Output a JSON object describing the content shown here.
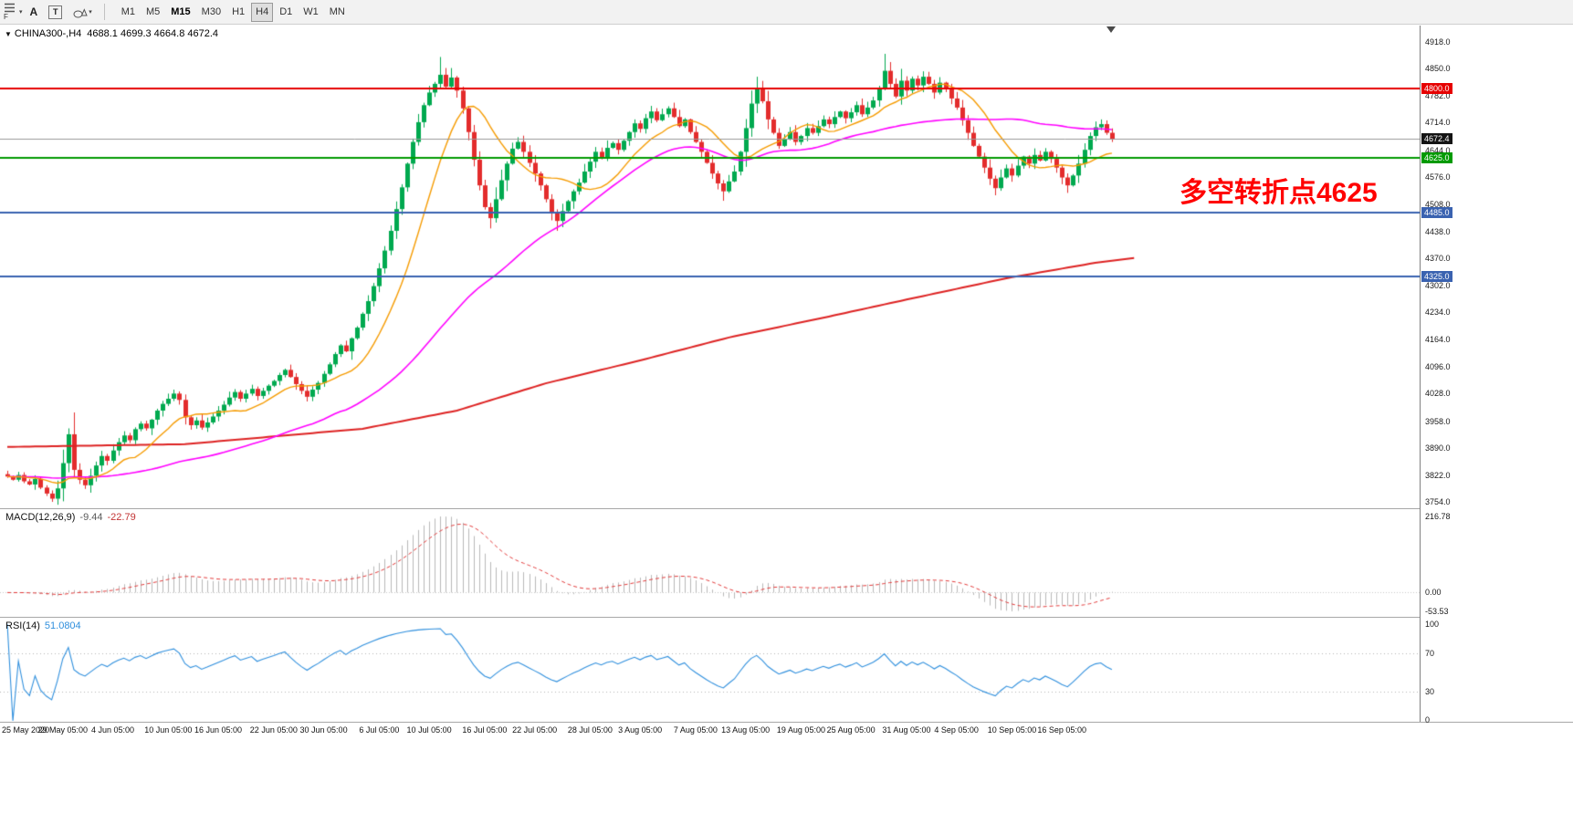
{
  "toolbar": {
    "profile_letter": "F",
    "cursor_label": "A",
    "text_tool_label": "T",
    "timeframes": [
      {
        "label": "M1"
      },
      {
        "label": "M5"
      },
      {
        "label": "M15",
        "bold": true
      },
      {
        "label": "M30"
      },
      {
        "label": "H1"
      },
      {
        "label": "H4",
        "pressed": true
      },
      {
        "label": "D1"
      },
      {
        "label": "W1"
      },
      {
        "label": "MN"
      }
    ]
  },
  "chart": {
    "symbol_title": "CHINA300-,H4",
    "ohlc_text": "4688.1 4699.3 4664.8 4672.4"
  },
  "macd_panel": {
    "title": "MACD(12,26,9)",
    "main_value": "-9.44",
    "signal_value": "-22.79",
    "axis_top": "216.78",
    "axis_zero": "0.00",
    "axis_bottom": "-53.53"
  },
  "rsi_panel": {
    "title": "RSI(14)",
    "value": "51.0804",
    "axis": [
      "100",
      "70",
      "30",
      "0"
    ]
  },
  "chart_data": {
    "type": "candlestick",
    "symbol": "CHINA300-",
    "timeframe": "H4",
    "last_ohlc": {
      "open": 4688.1,
      "high": 4699.3,
      "low": 4664.8,
      "close": 4672.4
    },
    "annotation": {
      "text": "多空转折点4625",
      "color": "#ff0000"
    },
    "first_open": 3824,
    "closes": [
      3818,
      3810,
      3822,
      3806,
      3798,
      3812,
      3790,
      3775,
      3762,
      3788,
      3852,
      3925,
      3835,
      3810,
      3796,
      3820,
      3846,
      3870,
      3858,
      3884,
      3905,
      3922,
      3910,
      3938,
      3952,
      3940,
      3962,
      3985,
      4002,
      4015,
      4028,
      4012,
      3968,
      3948,
      3960,
      3942,
      3955,
      3970,
      3985,
      4000,
      4018,
      4032,
      4015,
      4028,
      4040,
      4022,
      4035,
      4048,
      4060,
      4075,
      4088,
      4070,
      4052,
      4035,
      4020,
      4038,
      4055,
      4078,
      4102,
      4128,
      4150,
      4135,
      4168,
      4195,
      4230,
      4262,
      4300,
      4345,
      4390,
      4440,
      4495,
      4550,
      4610,
      4665,
      4715,
      4758,
      4790,
      4812,
      4835,
      4805,
      4828,
      4795,
      4750,
      4690,
      4620,
      4555,
      4500,
      4472,
      4520,
      4568,
      4610,
      4648,
      4665,
      4640,
      4612,
      4585,
      4555,
      4520,
      4488,
      4465,
      4490,
      4515,
      4540,
      4562,
      4590,
      4615,
      4640,
      4625,
      4650,
      4662,
      4645,
      4668,
      4690,
      4712,
      4698,
      4725,
      4742,
      4720,
      4735,
      4750,
      4728,
      4705,
      4722,
      4690,
      4665,
      4640,
      4612,
      4585,
      4560,
      4540,
      4565,
      4590,
      4640,
      4700,
      4762,
      4800,
      4768,
      4722,
      4688,
      4655,
      4672,
      4690,
      4665,
      4680,
      4700,
      4688,
      4705,
      4722,
      4710,
      4728,
      4742,
      4725,
      4740,
      4758,
      4735,
      4752,
      4770,
      4800,
      4845,
      4812,
      4780,
      4820,
      4795,
      4825,
      4808,
      4830,
      4812,
      4790,
      4815,
      4798,
      4775,
      4752,
      4720,
      4688,
      4655,
      4628,
      4600,
      4572,
      4548,
      4575,
      4598,
      4580,
      4605,
      4628,
      4610,
      4632,
      4618,
      4640,
      4622,
      4600,
      4575,
      4555,
      4580,
      4610,
      4645,
      4680,
      4702,
      4710,
      4688.1,
      4672.4
    ],
    "high_overrides": {
      "11": 3940,
      "78": 4880,
      "80": 4852,
      "135": 4830,
      "158": 4888,
      "161": 4850,
      "197": 4722,
      "199": 4699.3
    },
    "low_overrides": {
      "8": 3754,
      "87": 4446,
      "99": 4440,
      "129": 4516,
      "178": 4530,
      "191": 4536,
      "199": 4664.8
    },
    "candle_colors": {
      "bull": "#00a94f",
      "bear": "#e32c2c"
    },
    "y_axis": {
      "range": [
        3754.0,
        4918.0
      ],
      "ticks": [
        "4918.0",
        "4850.0",
        "4782.0",
        "4714.0",
        "4644.0",
        "4576.0",
        "4508.0",
        "4438.0",
        "4370.0",
        "4302.0",
        "4234.0",
        "4164.0",
        "4096.0",
        "4028.0",
        "3958.0",
        "3890.0",
        "3822.0",
        "3754.0"
      ]
    },
    "x_axis": {
      "labels": [
        {
          "text": "25 May 2020",
          "candle": 0
        },
        {
          "text": "29 May 05:00",
          "candle": 10
        },
        {
          "text": "4 Jun 05:00",
          "candle": 19
        },
        {
          "text": "10 Jun 05:00",
          "candle": 29
        },
        {
          "text": "16 Jun 05:00",
          "candle": 38
        },
        {
          "text": "22 Jun 05:00",
          "candle": 48
        },
        {
          "text": "30 Jun 05:00",
          "candle": 57
        },
        {
          "text": "6 Jul 05:00",
          "candle": 67
        },
        {
          "text": "10 Jul 05:00",
          "candle": 76
        },
        {
          "text": "16 Jul 05:00",
          "candle": 86
        },
        {
          "text": "22 Jul 05:00",
          "candle": 95
        },
        {
          "text": "28 Jul 05:00",
          "candle": 105
        },
        {
          "text": "3 Aug 05:00",
          "candle": 114
        },
        {
          "text": "7 Aug 05:00",
          "candle": 124
        },
        {
          "text": "13 Aug 05:00",
          "candle": 133
        },
        {
          "text": "19 Aug 05:00",
          "candle": 143
        },
        {
          "text": "25 Aug 05:00",
          "candle": 152
        },
        {
          "text": "31 Aug 05:00",
          "candle": 162
        },
        {
          "text": "4 Sep 05:00",
          "candle": 171
        },
        {
          "text": "10 Sep 05:00",
          "candle": 181
        },
        {
          "text": "16 Sep 05:00",
          "candle": 190
        }
      ]
    },
    "horizontal_levels": [
      {
        "price": 4800.0,
        "label": "4800.0",
        "line_color": "#e60000",
        "badge_bg": "#e60000",
        "width": 2
      },
      {
        "price": 4625.0,
        "label": "4625.0",
        "line_color": "#009a00",
        "badge_bg": "#009a00",
        "width": 2
      },
      {
        "price": 4485.0,
        "label": "4485.0",
        "line_color": "#3a62b0",
        "badge_bg": "#3a62b0",
        "width": 2
      },
      {
        "price": 4325.0,
        "label": "4325.0",
        "line_color": "#3a62b0",
        "badge_bg": "#3a62b0",
        "width": 2
      },
      {
        "price": 4672.4,
        "label": "4672.4",
        "line_color": "#999999",
        "badge_bg": "#141414",
        "width": 1,
        "role": "current_price"
      }
    ],
    "moving_averages": {
      "fast": {
        "color": "#f59b00",
        "period": 12
      },
      "medium": {
        "color": "#ff00ff",
        "period": 50
      },
      "slow": {
        "color": "#dd2222",
        "waypoints": [
          [
            0,
            3893
          ],
          [
            32,
            3900
          ],
          [
            64,
            3939
          ],
          [
            81,
            3985
          ],
          [
            97,
            4054
          ],
          [
            114,
            4112
          ],
          [
            130,
            4170
          ],
          [
            147,
            4220
          ],
          [
            163,
            4269
          ],
          [
            180,
            4320
          ],
          [
            196,
            4359
          ],
          [
            203,
            4371
          ]
        ]
      }
    },
    "macd": {
      "fast": 12,
      "slow": 26,
      "signal": 9,
      "main_value": -9.44,
      "signal_value": -22.79,
      "scale_max": 216.78,
      "scale_min": -53.53,
      "histogram_color": "#b9b9b9",
      "signal_color": "#e23a3a"
    },
    "rsi": {
      "period": 14,
      "value": 51.0804,
      "levels": [
        70,
        30
      ],
      "scale": [
        0,
        100
      ],
      "line_color": "#2f8fdd"
    }
  }
}
